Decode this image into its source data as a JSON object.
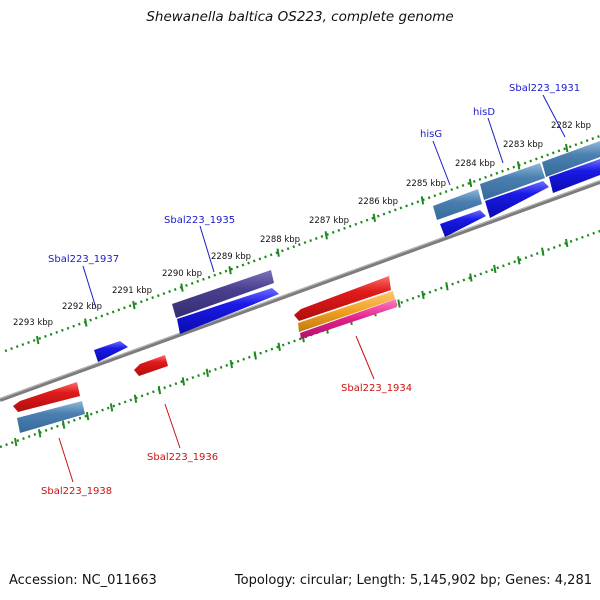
{
  "header": {
    "title": "Shewanella baltica OS223, complete genome"
  },
  "footer": {
    "accession": "Accession: NC_011663",
    "summary": "Topology: circular; Length: 5,145,902 bp; Genes: 4,281"
  },
  "scale": {
    "tick_labels": [
      "2282 kbp",
      "2283 kbp",
      "2284 kbp",
      "2285 kbp",
      "2286 kbp",
      "2287 kbp",
      "2288 kbp",
      "2289 kbp",
      "2290 kbp",
      "2291 kbp",
      "2292 kbp",
      "2293 kbp"
    ]
  },
  "genes": {
    "forward": [
      "Sbal223_1931",
      "hisD",
      "hisG",
      "Sbal223_1935",
      "Sbal223_1937"
    ],
    "reverse": [
      "Sbal223_1934",
      "Sbal223_1936",
      "Sbal223_1938"
    ]
  },
  "colors": {
    "backbone": "#808080",
    "dots": "#1e8a1e",
    "label_forward": "#1a1acc",
    "label_reverse": "#cc1111",
    "gene_blue": "#1a1ae6",
    "gene_steel": "#4a7fb0",
    "gene_navy": "#4a4090",
    "gene_red": "#e01a1a",
    "gene_orange": "#f0a020",
    "gene_magenta": "#e0208a"
  }
}
